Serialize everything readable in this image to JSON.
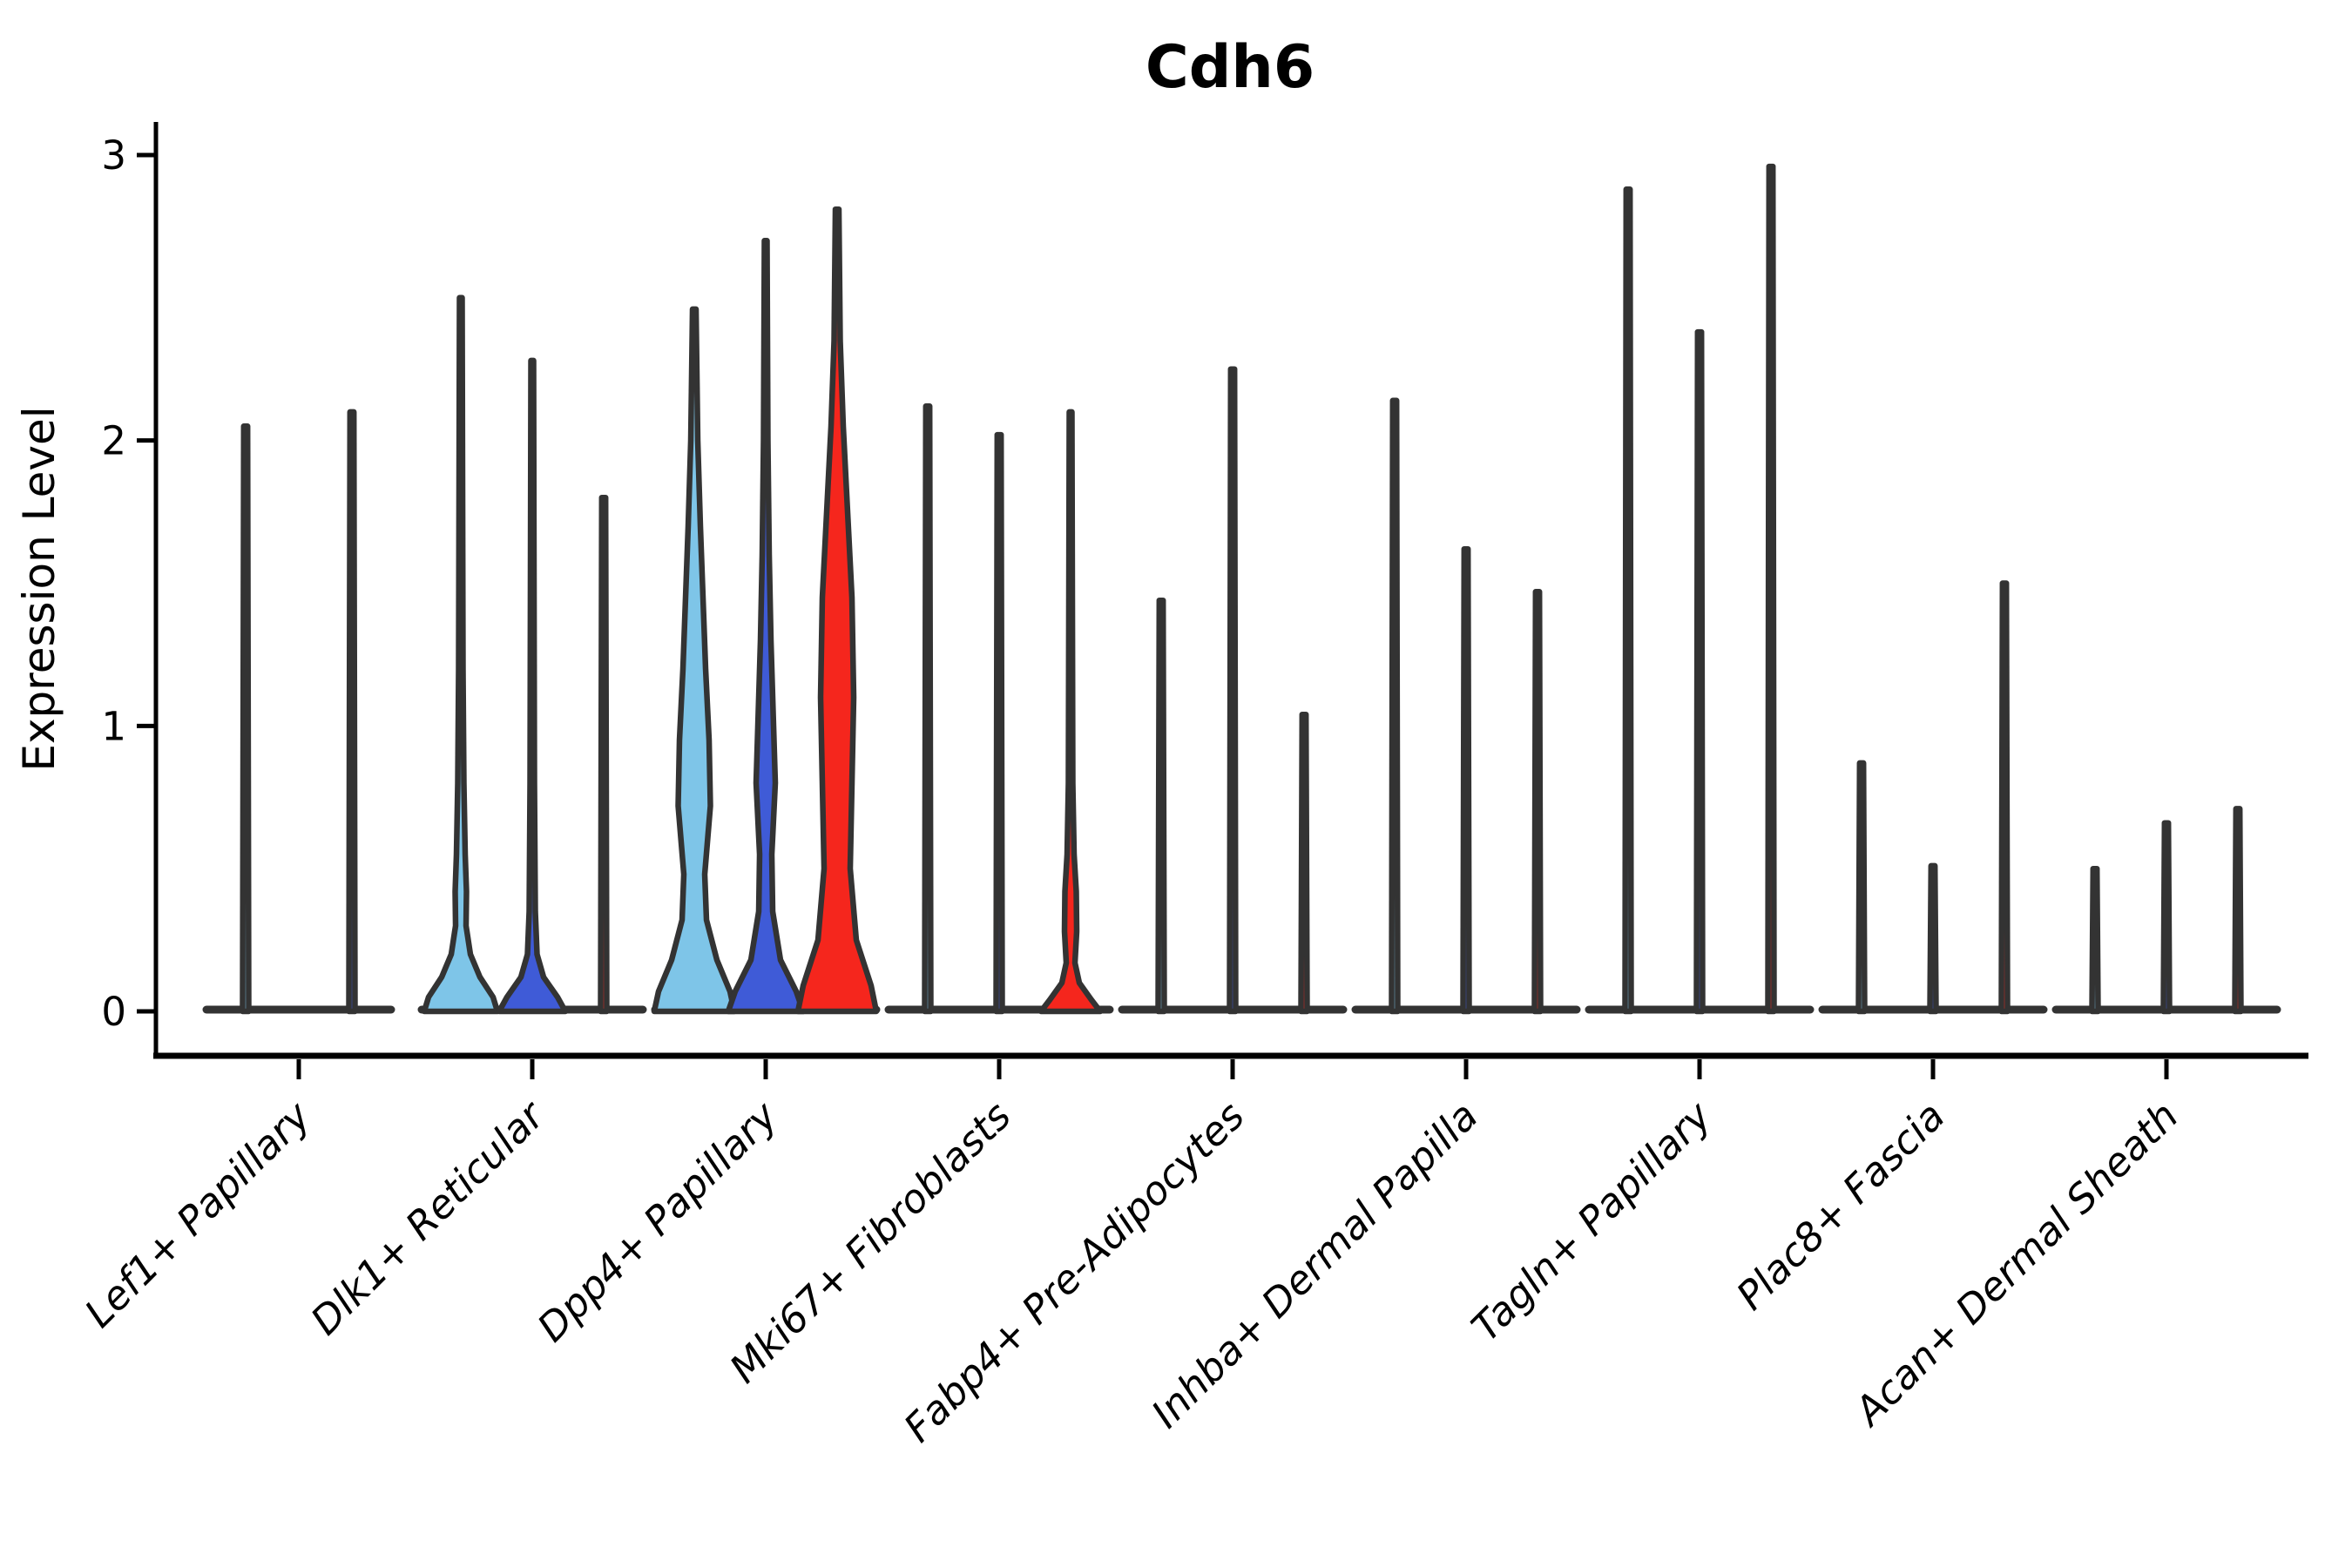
{
  "title": "Cdh6",
  "axes": {
    "ylabel": "Expression Level",
    "yticks": [
      "0",
      "1",
      "2",
      "3"
    ],
    "ylim": [
      0,
      3.05
    ]
  },
  "colors": {
    "outline": "#333333",
    "axis": "#000000",
    "background": "#ffffff",
    "sample_palette": [
      "#7EC5E8",
      "#3F5BD7",
      "#F5261D"
    ]
  },
  "chart_data": {
    "type": "violin",
    "title": "Cdh6",
    "ylabel": "Expression Level",
    "yticks": [
      0,
      1,
      2,
      3
    ],
    "ylim": [
      0,
      3.05
    ],
    "legend": "none",
    "grid": false,
    "categories": [
      "Lef1+ Papillary",
      "Dlk1+ Reticular",
      "Dpp4+ Papillary",
      "Mki67+ Fibroblasts",
      "Fabp4+ Pre-Adipocytes",
      "Inhba+ Dermal Papilla",
      "Tagln+ Papillary",
      "Plac8+ Fascia",
      "Acan+ Dermal Sheath"
    ],
    "groups": [
      {
        "label": "Lef1+ Papillary",
        "violins": [
          {
            "sample": 0,
            "max_expression": 2.05
          },
          {
            "sample": 1,
            "max_expression": 2.1
          }
        ]
      },
      {
        "label": "Dlk1+ Reticular",
        "violins": [
          {
            "sample": 0,
            "max_expression": 2.5,
            "profile": [
              [
                0,
                42
              ],
              [
                0.05,
                37
              ],
              [
                0.12,
                22
              ],
              [
                0.2,
                11
              ],
              [
                0.3,
                6
              ],
              [
                0.42,
                6.5
              ],
              [
                0.55,
                5
              ],
              [
                0.8,
                3.5
              ],
              [
                1.2,
                2.5
              ],
              [
                2.5,
                1.5
              ]
            ]
          },
          {
            "sample": 1,
            "max_expression": 2.28,
            "profile": [
              [
                0,
                38
              ],
              [
                0.05,
                29
              ],
              [
                0.12,
                13
              ],
              [
                0.2,
                5.5
              ],
              [
                0.35,
                3.5
              ],
              [
                0.8,
                2.5
              ],
              [
                2.28,
                1.5
              ]
            ]
          },
          {
            "sample": 2,
            "max_expression": 1.8
          }
        ]
      },
      {
        "label": "Dpp4+ Papillary",
        "violins": [
          {
            "sample": 0,
            "max_expression": 2.46,
            "profile": [
              [
                0,
                46
              ],
              [
                0.07,
                41
              ],
              [
                0.18,
                26
              ],
              [
                0.32,
                14
              ],
              [
                0.48,
                12
              ],
              [
                0.72,
                18.5
              ],
              [
                0.95,
                17
              ],
              [
                1.2,
                13
              ],
              [
                1.45,
                10
              ],
              [
                1.7,
                7
              ],
              [
                2.0,
                4
              ],
              [
                2.46,
                2
              ]
            ]
          },
          {
            "sample": 1,
            "max_expression": 2.7,
            "profile": [
              [
                0,
                43
              ],
              [
                0.07,
                35
              ],
              [
                0.18,
                17
              ],
              [
                0.35,
                8
              ],
              [
                0.55,
                7
              ],
              [
                0.8,
                11
              ],
              [
                1.0,
                9
              ],
              [
                1.3,
                6
              ],
              [
                1.6,
                4
              ],
              [
                2.0,
                2.5
              ],
              [
                2.7,
                1.5
              ]
            ]
          },
          {
            "sample": 2,
            "max_expression": 2.81,
            "profile": [
              [
                0,
                45
              ],
              [
                0.09,
                39
              ],
              [
                0.25,
                22
              ],
              [
                0.5,
                15
              ],
              [
                0.8,
                17
              ],
              [
                1.1,
                19
              ],
              [
                1.45,
                17
              ],
              [
                1.75,
                12
              ],
              [
                2.05,
                7
              ],
              [
                2.35,
                3.5
              ],
              [
                2.81,
                2
              ]
            ]
          }
        ]
      },
      {
        "label": "Mki67+ Fibroblasts",
        "violins": [
          {
            "sample": 0,
            "max_expression": 2.12
          },
          {
            "sample": 1,
            "max_expression": 2.02
          },
          {
            "sample": 2,
            "max_expression": 2.1,
            "profile": [
              [
                0,
                34
              ],
              [
                0.04,
                24
              ],
              [
                0.1,
                10
              ],
              [
                0.17,
                5
              ],
              [
                0.28,
                7
              ],
              [
                0.42,
                6.5
              ],
              [
                0.55,
                4
              ],
              [
                0.8,
                2.5
              ],
              [
                2.1,
                1.5
              ]
            ]
          }
        ]
      },
      {
        "label": "Fabp4+ Pre-Adipocytes",
        "violins": [
          {
            "sample": 0,
            "max_expression": 1.44
          },
          {
            "sample": 1,
            "max_expression": 2.25
          },
          {
            "sample": 2,
            "max_expression": 1.04
          }
        ]
      },
      {
        "label": "Inhba+ Dermal Papilla",
        "violins": [
          {
            "sample": 0,
            "max_expression": 2.14
          },
          {
            "sample": 1,
            "max_expression": 1.62
          },
          {
            "sample": 2,
            "max_expression": 1.47
          }
        ]
      },
      {
        "label": "Tagln+ Papillary",
        "violins": [
          {
            "sample": 0,
            "max_expression": 2.88
          },
          {
            "sample": 1,
            "max_expression": 2.38
          },
          {
            "sample": 2,
            "max_expression": 2.96
          }
        ]
      },
      {
        "label": "Plac8+ Fascia",
        "violins": [
          {
            "sample": 0,
            "max_expression": 0.87
          },
          {
            "sample": 1,
            "max_expression": 0.51
          },
          {
            "sample": 2,
            "max_expression": 1.5
          }
        ]
      },
      {
        "label": "Acan+ Dermal Sheath",
        "violins": [
          {
            "sample": 0,
            "max_expression": 0.5
          },
          {
            "sample": 1,
            "max_expression": 0.66
          },
          {
            "sample": 2,
            "max_expression": 0.71
          }
        ]
      }
    ]
  }
}
